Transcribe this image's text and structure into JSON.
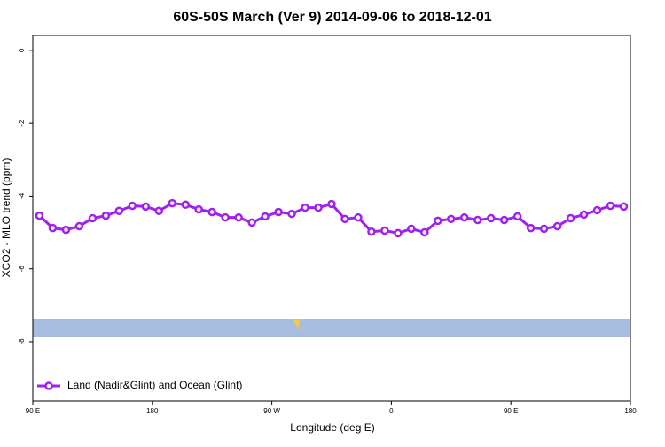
{
  "chart_data": {
    "type": "line",
    "title": "60S-50S March (Ver 9)   2014-09-06 to 2018-12-01",
    "x_label": "Longitude (deg E)",
    "y_label": "XCO2 - MLO trend (ppm)",
    "x": [
      95,
      105,
      115,
      125,
      135,
      145,
      155,
      165,
      175,
      185,
      195,
      205,
      215,
      225,
      235,
      245,
      255,
      265,
      275,
      285,
      295,
      305,
      315,
      325,
      335,
      345,
      355,
      365,
      375,
      385,
      395,
      405,
      415,
      425,
      435,
      445,
      455,
      465,
      475,
      485,
      495,
      505,
      515,
      525,
      535
    ],
    "series": [
      {
        "name": "Land (Nadir&Glint) and Ocean (Glint)",
        "color": "#a020f0",
        "values": [
          -4.54,
          -4.88,
          -4.93,
          -4.83,
          -4.61,
          -4.54,
          -4.41,
          -4.27,
          -4.29,
          -4.41,
          -4.2,
          -4.24,
          -4.37,
          -4.44,
          -4.59,
          -4.59,
          -4.73,
          -4.56,
          -4.44,
          -4.49,
          -4.32,
          -4.32,
          -4.22,
          -4.63,
          -4.59,
          -4.98,
          -4.95,
          -5.02,
          -4.9,
          -5.0,
          -4.68,
          -4.63,
          -4.59,
          -4.66,
          -4.61,
          -4.66,
          -4.56,
          -4.88,
          -4.9,
          -4.83,
          -4.61,
          -4.51,
          -4.39,
          -4.27,
          -4.29
        ]
      }
    ],
    "xlim": [
      90,
      540
    ],
    "xticks": [
      {
        "value": 90,
        "label": "90 E"
      },
      180,
      {
        "value": 270,
        "label": "90 W"
      },
      {
        "value": 360,
        "label": "0"
      },
      {
        "value": 450,
        "label": "90 E"
      },
      {
        "value": 540,
        "label": "180"
      }
    ],
    "ylim": [
      -9.63,
      0.41
    ],
    "yticks": [
      0,
      -2,
      -4,
      -6,
      -8
    ],
    "legend": "bottom-left"
  }
}
